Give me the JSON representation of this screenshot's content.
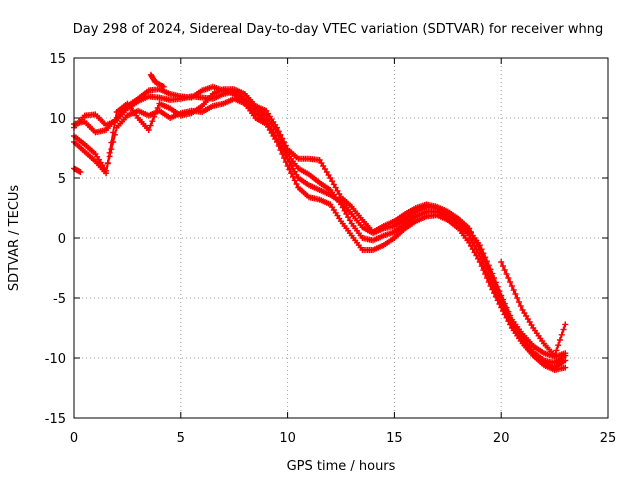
{
  "chart_data": {
    "type": "scatter",
    "title": "Day 298 of 2024, Sidereal Day-to-day VTEC variation (SDTVAR) for receiver whng",
    "xlabel": "GPS time / hours",
    "ylabel": "SDTVAR / TECUs",
    "xlim": [
      0,
      25
    ],
    "ylim": [
      -15,
      15
    ],
    "xticks": [
      0,
      5,
      10,
      15,
      20,
      25
    ],
    "yticks": [
      -15,
      -10,
      -5,
      0,
      5,
      10,
      15
    ],
    "grid": true,
    "marker": "+",
    "color": "#ff0000",
    "series": [
      {
        "name": "trace-1",
        "points": [
          [
            0,
            9.2
          ],
          [
            0.5,
            10.2
          ],
          [
            1,
            10.3
          ],
          [
            1.5,
            9.4
          ],
          [
            2,
            9.8
          ],
          [
            2.5,
            10.8
          ],
          [
            3,
            11.4
          ],
          [
            3.5,
            11.8
          ],
          [
            4,
            11.7
          ],
          [
            4.5,
            11.5
          ],
          [
            5,
            11.6
          ],
          [
            5.5,
            11.8
          ],
          [
            6,
            11.7
          ],
          [
            6.5,
            11.6
          ],
          [
            7,
            12.0
          ],
          [
            7.5,
            12.2
          ],
          [
            8,
            11.5
          ],
          [
            8.5,
            10.8
          ],
          [
            9,
            10.2
          ],
          [
            9.5,
            8.8
          ],
          [
            10,
            7.0
          ],
          [
            10.5,
            5.8
          ],
          [
            11,
            5.3
          ],
          [
            11.5,
            4.6
          ],
          [
            12,
            4.0
          ],
          [
            12.5,
            2.8
          ],
          [
            13,
            1.2
          ],
          [
            13.5,
            0.0
          ],
          [
            14,
            -0.2
          ],
          [
            14.5,
            0.2
          ],
          [
            15,
            0.5
          ],
          [
            15.5,
            1.2
          ],
          [
            16,
            1.8
          ],
          [
            16.5,
            2.2
          ],
          [
            17,
            2.2
          ],
          [
            17.5,
            1.8
          ],
          [
            18,
            1.2
          ],
          [
            18.5,
            0.2
          ],
          [
            19,
            -1.5
          ],
          [
            19.5,
            -3.5
          ],
          [
            20,
            -5.5
          ],
          [
            20.5,
            -7.2
          ],
          [
            21,
            -8.2
          ],
          [
            21.5,
            -9.5
          ],
          [
            22,
            -10.2
          ],
          [
            22.5,
            -10.4
          ],
          [
            23,
            -9.8
          ]
        ]
      },
      {
        "name": "trace-2",
        "points": [
          [
            0,
            9.5
          ],
          [
            0.5,
            9.7
          ],
          [
            1,
            8.8
          ],
          [
            1.5,
            9.0
          ],
          [
            2,
            10.0
          ],
          [
            2.5,
            11.0
          ],
          [
            3,
            11.6
          ],
          [
            3.5,
            12.3
          ],
          [
            4,
            12.4
          ],
          [
            4.5,
            12.0
          ],
          [
            5,
            11.8
          ],
          [
            5.5,
            11.7
          ],
          [
            6,
            12.3
          ],
          [
            6.5,
            12.6
          ],
          [
            7,
            12.3
          ],
          [
            7.5,
            12.0
          ],
          [
            8,
            11.2
          ],
          [
            8.5,
            10.4
          ],
          [
            9,
            9.8
          ],
          [
            9.5,
            8.3
          ],
          [
            10,
            6.6
          ],
          [
            10.5,
            5.0
          ],
          [
            11,
            4.4
          ],
          [
            11.5,
            4.0
          ],
          [
            12,
            3.6
          ],
          [
            12.5,
            3.0
          ],
          [
            13,
            2.0
          ],
          [
            13.5,
            0.9
          ],
          [
            14,
            0.4
          ],
          [
            14.5,
            0.8
          ],
          [
            15,
            1.0
          ],
          [
            15.5,
            1.6
          ],
          [
            16,
            2.2
          ],
          [
            16.5,
            2.6
          ],
          [
            17,
            2.5
          ],
          [
            17.5,
            2.0
          ],
          [
            18,
            1.4
          ],
          [
            18.5,
            0.6
          ],
          [
            19,
            -0.6
          ],
          [
            19.5,
            -2.6
          ],
          [
            20,
            -4.8
          ],
          [
            20.5,
            -6.8
          ],
          [
            21,
            -8.0
          ],
          [
            21.5,
            -9.0
          ],
          [
            22,
            -9.6
          ],
          [
            22.5,
            -9.9
          ],
          [
            23,
            -9.6
          ]
        ]
      },
      {
        "name": "trace-3",
        "points": [
          [
            0,
            8.5
          ],
          [
            0.5,
            7.8
          ],
          [
            1,
            7.0
          ],
          [
            1.5,
            5.6
          ],
          [
            2,
            9.2
          ],
          [
            2.5,
            10.2
          ],
          [
            3,
            10.6
          ],
          [
            3.5,
            10.2
          ],
          [
            4,
            10.6
          ],
          [
            4.5,
            10.0
          ],
          [
            5,
            10.4
          ],
          [
            5.5,
            10.6
          ],
          [
            6,
            10.5
          ],
          [
            6.5,
            11.0
          ],
          [
            7,
            11.2
          ],
          [
            7.5,
            11.6
          ],
          [
            8,
            11.2
          ],
          [
            8.5,
            10.0
          ],
          [
            9,
            9.5
          ],
          [
            9.5,
            8.0
          ],
          [
            10,
            6.0
          ],
          [
            10.5,
            4.2
          ],
          [
            11,
            3.4
          ],
          [
            11.5,
            3.2
          ],
          [
            12,
            2.8
          ],
          [
            12.5,
            1.4
          ],
          [
            13,
            0.2
          ],
          [
            13.5,
            -1.0
          ],
          [
            14,
            -1.0
          ],
          [
            14.5,
            -0.6
          ],
          [
            15,
            0.0
          ],
          [
            15.5,
            0.8
          ],
          [
            16,
            1.4
          ],
          [
            16.5,
            1.8
          ],
          [
            17,
            1.9
          ],
          [
            17.5,
            1.5
          ],
          [
            18,
            0.8
          ],
          [
            18.5,
            -0.4
          ],
          [
            19,
            -2.0
          ],
          [
            19.5,
            -4.0
          ],
          [
            20,
            -5.8
          ],
          [
            20.5,
            -7.5
          ],
          [
            21,
            -8.8
          ],
          [
            21.5,
            -9.8
          ],
          [
            22,
            -10.4
          ],
          [
            22.5,
            -10.8
          ],
          [
            23,
            -10.2
          ]
        ]
      },
      {
        "name": "trace-4",
        "points": [
          [
            0,
            8.0
          ],
          [
            0.5,
            7.2
          ],
          [
            1,
            6.4
          ],
          [
            1.5,
            5.4
          ],
          [
            2,
            10.5
          ],
          [
            2.5,
            11.2
          ],
          [
            3,
            10.0
          ],
          [
            3.5,
            9.0
          ],
          [
            4,
            11.2
          ],
          [
            4.5,
            10.8
          ],
          [
            5,
            10.2
          ],
          [
            5.5,
            10.4
          ],
          [
            6,
            11.0
          ],
          [
            6.5,
            12.0
          ],
          [
            7,
            12.4
          ],
          [
            7.5,
            12.4
          ],
          [
            8,
            12.0
          ],
          [
            8.5,
            11.0
          ],
          [
            9,
            10.6
          ],
          [
            9.5,
            9.2
          ],
          [
            10,
            7.4
          ],
          [
            10.5,
            6.6
          ],
          [
            11,
            6.6
          ],
          [
            11.5,
            6.5
          ],
          [
            12,
            5.0
          ],
          [
            12.5,
            3.4
          ],
          [
            13,
            2.6
          ],
          [
            13.5,
            1.5
          ],
          [
            14,
            0.5
          ],
          [
            14.5,
            1.0
          ],
          [
            15,
            1.4
          ],
          [
            15.5,
            2.0
          ],
          [
            16,
            2.5
          ],
          [
            16.5,
            2.8
          ],
          [
            17,
            2.6
          ],
          [
            17.5,
            2.2
          ],
          [
            18,
            1.6
          ],
          [
            18.5,
            0.8
          ],
          [
            19,
            -1.0
          ],
          [
            19.5,
            -3.0
          ],
          [
            20,
            -5.0
          ],
          [
            20.5,
            -7.0
          ],
          [
            21,
            -8.5
          ],
          [
            21.5,
            -9.8
          ],
          [
            22,
            -10.6
          ],
          [
            22.5,
            -11.0
          ],
          [
            23,
            -10.8
          ]
        ]
      },
      {
        "name": "trace-5",
        "points": [
          [
            0,
            5.8
          ],
          [
            0.3,
            5.5
          ]
        ]
      },
      {
        "name": "trace-6",
        "points": [
          [
            20,
            -2.0
          ],
          [
            20.5,
            -4.0
          ],
          [
            21,
            -6.0
          ],
          [
            21.5,
            -7.5
          ],
          [
            22,
            -8.8
          ],
          [
            22.5,
            -9.8
          ],
          [
            23,
            -7.2
          ]
        ]
      },
      {
        "name": "trace-7",
        "points": [
          [
            3.6,
            13.6
          ],
          [
            3.8,
            13.0
          ],
          [
            4.2,
            12.6
          ]
        ]
      }
    ]
  }
}
